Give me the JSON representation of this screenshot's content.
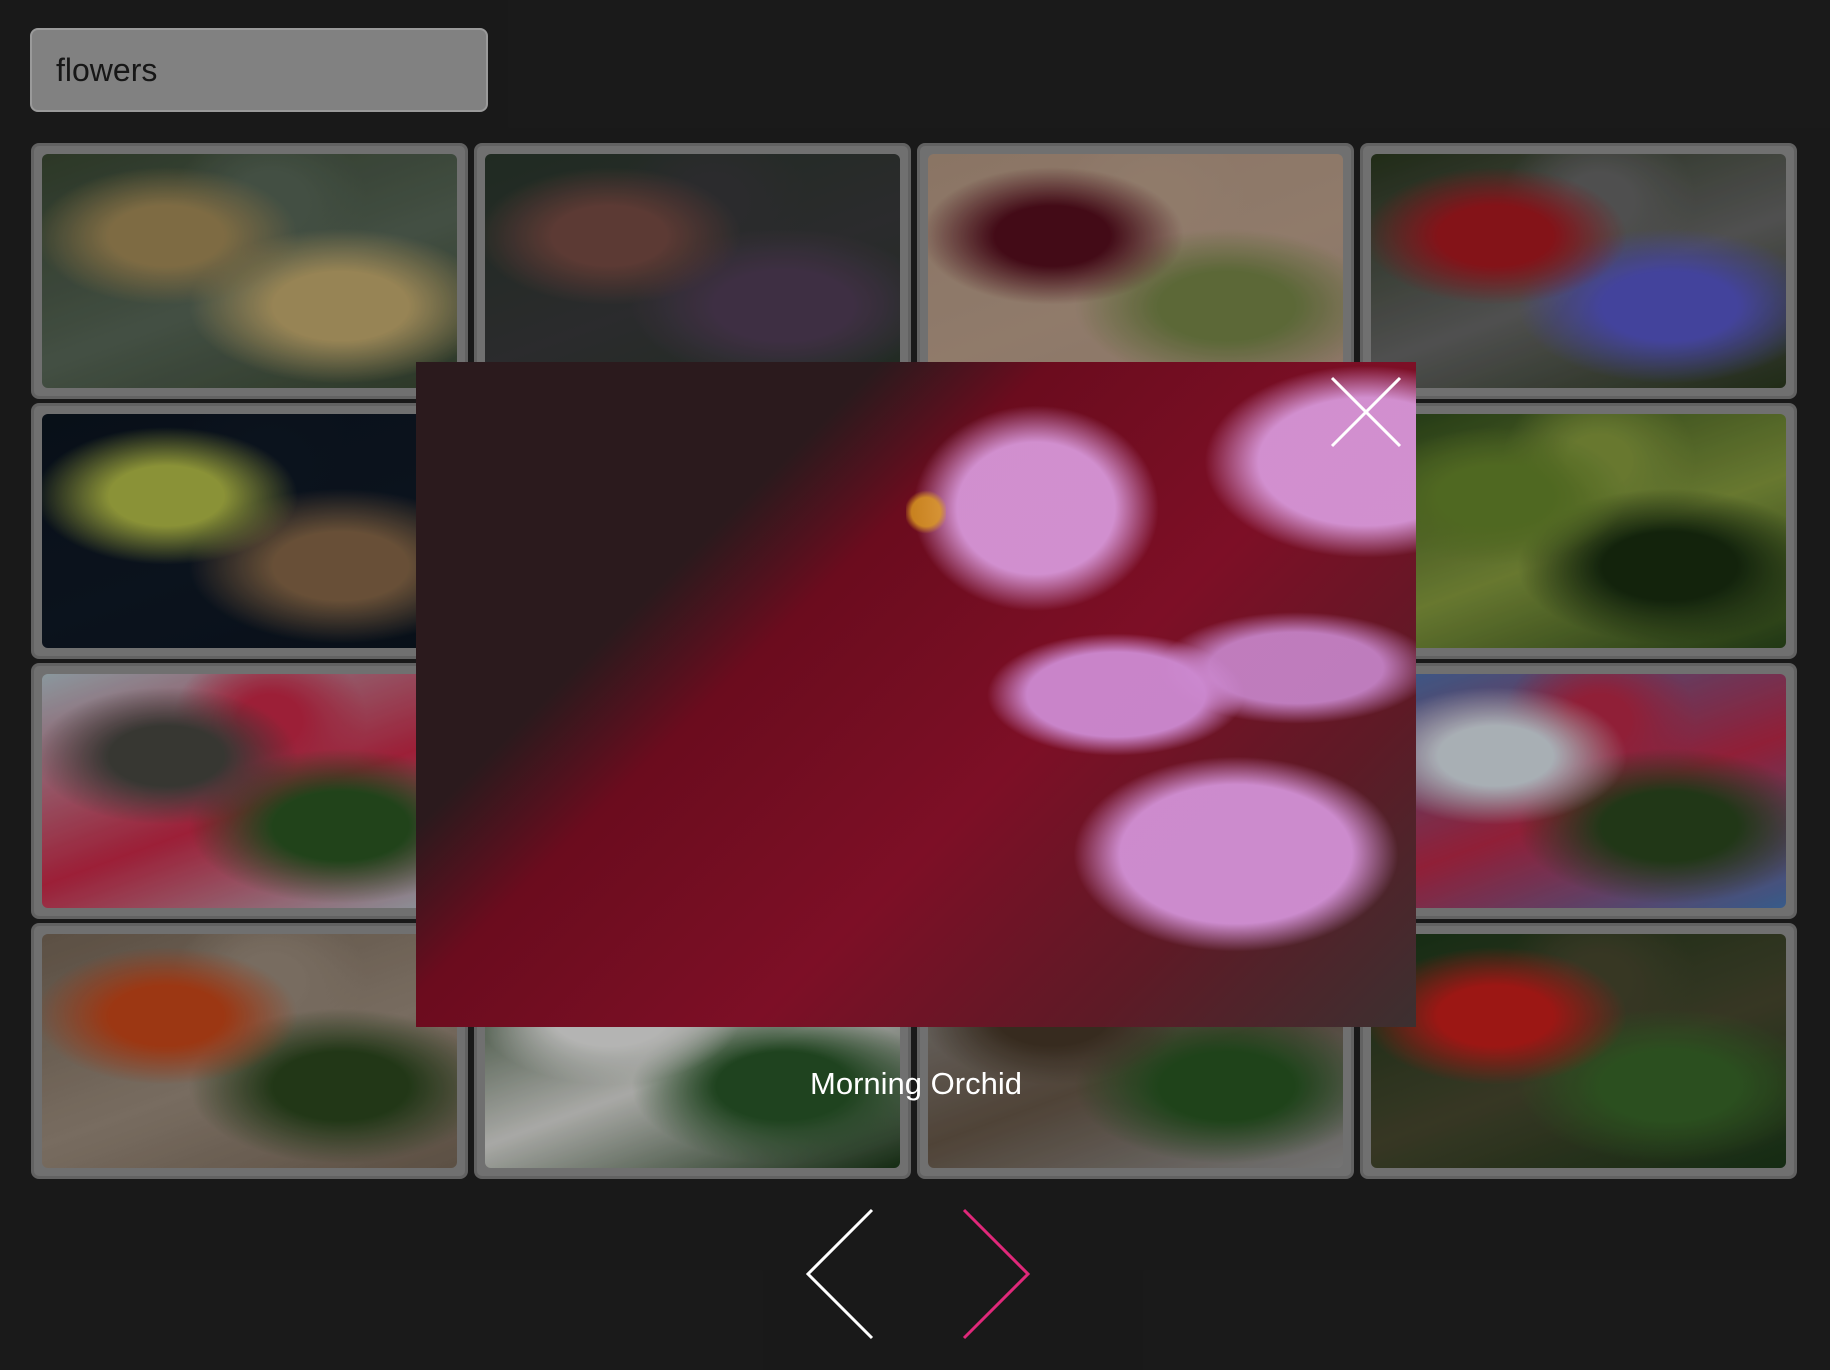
{
  "search": {
    "value": "flowers"
  },
  "gallery": {
    "tiles": [
      {
        "image": "yellow-daisy-bokeh",
        "colors": [
          "#3b4a34",
          "#a88f5a",
          "#c9b072",
          "#5a6a5a"
        ]
      },
      {
        "image": "colored-sand-hills",
        "colors": [
          "#2b3a2e",
          "#7a4d46",
          "#54405a",
          "#3a3a3c"
        ]
      },
      {
        "image": "dark-red-flowers-card",
        "colors": [
          "#b89b86",
          "#5a1020",
          "#7a8a4a",
          "#c0a48e"
        ]
      },
      {
        "image": "flowerbed-origami-bird",
        "colors": [
          "#2c3a20",
          "#b01a22",
          "#5a5ad0",
          "#6a6a6a"
        ]
      },
      {
        "image": "dandelion-seed-head",
        "colors": [
          "#0c1622",
          "#b8c24a",
          "#8a6a4a",
          "#101a28"
        ]
      },
      {
        "image": "horse-carriage-night",
        "colors": [
          "#1a100c",
          "#7a4a30",
          "#c0a080",
          "#2a1a14"
        ]
      },
      {
        "image": "red-zinnia",
        "colors": [
          "#6a6060",
          "#c8101c",
          "#2e4a24",
          "#8a7a6a"
        ]
      },
      {
        "image": "lotus-leaves",
        "colors": [
          "#2c4a1c",
          "#6a8a2c",
          "#1a3012",
          "#8aa040"
        ]
      },
      {
        "image": "bougainvillea-rock",
        "colors": [
          "#b8cad2",
          "#4a4a44",
          "#2c5a24",
          "#d02a4a"
        ]
      },
      {
        "image": "flowering-bushes-ruins",
        "colors": [
          "#5a7a9a",
          "#2c4a20",
          "#c02a4a",
          "#3a4a2a"
        ]
      },
      {
        "image": "lotus-pond",
        "colors": [
          "#2c4a24",
          "#c0a0a0",
          "#3a6a2a",
          "#1e3014"
        ]
      },
      {
        "image": "flowering-bushes-sky",
        "colors": [
          "#4a7ab8",
          "#e0e8f0",
          "#2c4a20",
          "#c02a4a"
        ]
      },
      {
        "image": "orange-zinnia-stone",
        "colors": [
          "#7a6a5a",
          "#d04a1a",
          "#2e4a20",
          "#a09080"
        ]
      },
      {
        "image": "white-roses",
        "colors": [
          "#1c3a1a",
          "#f0f0ee",
          "#2a5a2a",
          "#e0e0dc"
        ]
      },
      {
        "image": "wicker-fence-flowers",
        "colors": [
          "#9a9a9a",
          "#4a3a2a",
          "#2a5a24",
          "#6a5a4a"
        ]
      },
      {
        "image": "red-zinnias-garden",
        "colors": [
          "#1c3a1a",
          "#d0201c",
          "#3a6a2a",
          "#4a4a30"
        ]
      }
    ]
  },
  "lightbox": {
    "image": "pink-orchid-on-red",
    "caption": "Morning Orchid"
  },
  "colors": {
    "background": "#1c1c1c",
    "tile_frame": "#7a7a7a",
    "next_arrow": "#e0287a",
    "icon_white": "#ffffff"
  },
  "icons": {
    "close": "close-icon",
    "previous": "chevron-left-icon",
    "next": "chevron-right-icon"
  }
}
